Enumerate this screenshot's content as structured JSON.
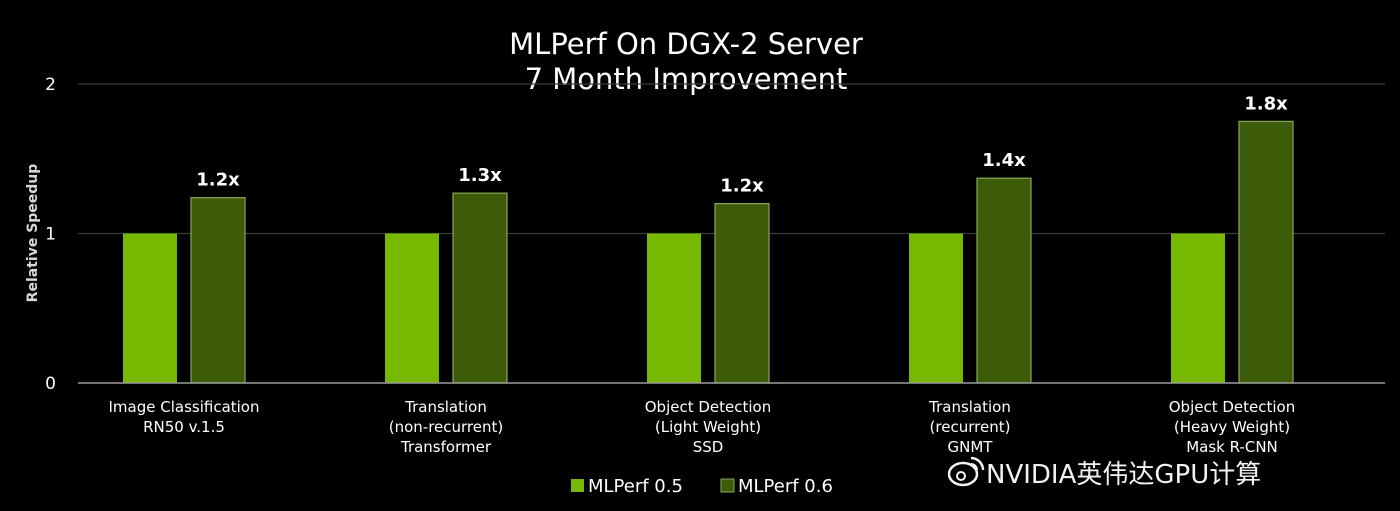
{
  "colors": {
    "background": "#000000",
    "gridline": "#3a3a3a",
    "axis": "#9a9a9a",
    "series_0": "#76b900",
    "series_1": "#3d5c0a",
    "series_1_border": "#8aa55a"
  },
  "watermark": {
    "text": "NVIDIA英伟达GPU计算",
    "icon": "weibo-logo-icon"
  },
  "chart_data": {
    "type": "bar",
    "title": "MLPerf On DGX-2 Server",
    "subtitle": "7 Month Improvement",
    "ylabel": "Relative Speedup",
    "xlabel": "",
    "ylim": [
      0,
      2
    ],
    "yticks": [
      "0",
      "1",
      "2"
    ],
    "grid": true,
    "legend_position": "bottom",
    "categories": [
      [
        "Image Classification",
        "RN50 v.1.5"
      ],
      [
        "Translation",
        "(non-recurrent)",
        "Transformer"
      ],
      [
        "Object Detection",
        "(Light Weight)",
        "SSD"
      ],
      [
        "Translation",
        "(recurrent)",
        "GNMT"
      ],
      [
        "Object Detection",
        "(Heavy Weight)",
        "Mask R-CNN"
      ]
    ],
    "series": [
      {
        "name": "MLPerf 0.5",
        "values": [
          1,
          1,
          1,
          1,
          1
        ]
      },
      {
        "name": "MLPerf 0.6",
        "values": [
          1.24,
          1.27,
          1.2,
          1.37,
          1.75
        ]
      }
    ],
    "data_labels": [
      "1.2x",
      "1.3x",
      "1.2x",
      "1.4x",
      "1.8x"
    ]
  }
}
